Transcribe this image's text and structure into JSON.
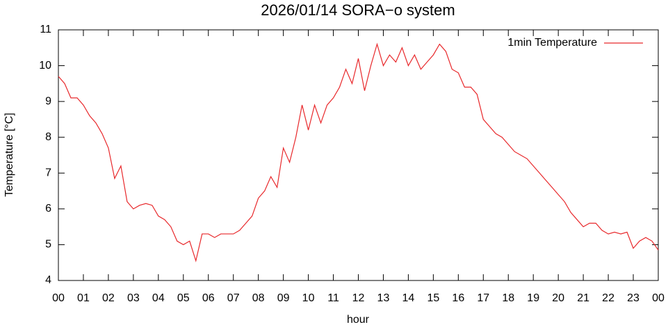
{
  "chart_data": {
    "type": "line",
    "title": "2026/01/14 SORA−o system",
    "x_label": "hour",
    "y_label": "Temperature [°C]",
    "x": [
      0,
      0.25,
      0.5,
      0.75,
      1,
      1.25,
      1.5,
      1.75,
      2,
      2.25,
      2.5,
      2.75,
      3,
      3.25,
      3.5,
      3.75,
      4,
      4.25,
      4.5,
      4.75,
      5,
      5.25,
      5.5,
      5.75,
      6,
      6.25,
      6.5,
      6.75,
      7,
      7.25,
      7.5,
      7.75,
      8,
      8.25,
      8.5,
      8.75,
      9,
      9.25,
      9.5,
      9.75,
      10,
      10.25,
      10.5,
      10.75,
      11,
      11.25,
      11.5,
      11.75,
      12,
      12.25,
      12.5,
      12.75,
      13,
      13.25,
      13.5,
      13.75,
      14,
      14.25,
      14.5,
      14.75,
      15,
      15.25,
      15.5,
      15.75,
      16,
      16.25,
      16.5,
      16.75,
      17,
      17.25,
      17.5,
      17.75,
      18,
      18.25,
      18.5,
      18.75,
      19,
      19.25,
      19.5,
      19.75,
      20,
      20.25,
      20.5,
      20.75,
      21,
      21.25,
      21.5,
      21.75,
      22,
      22.25,
      22.5,
      22.75,
      23,
      23.25,
      23.5,
      23.75,
      24
    ],
    "series": [
      {
        "name": "1min Temperature",
        "color": "#e8282b",
        "values": [
          9.7,
          9.5,
          9.1,
          9.1,
          8.9,
          8.6,
          8.4,
          8.1,
          7.7,
          6.85,
          7.2,
          6.2,
          6.0,
          6.1,
          6.15,
          6.1,
          5.8,
          5.7,
          5.5,
          5.1,
          5.0,
          5.1,
          4.55,
          5.3,
          5.3,
          5.2,
          5.3,
          5.3,
          5.3,
          5.4,
          5.6,
          5.8,
          6.3,
          6.5,
          6.9,
          6.6,
          7.7,
          7.3,
          8.0,
          8.9,
          8.2,
          8.9,
          8.4,
          8.9,
          9.1,
          9.4,
          9.9,
          9.5,
          10.2,
          9.3,
          10.0,
          10.6,
          10.0,
          10.3,
          10.1,
          10.5,
          10.0,
          10.3,
          9.9,
          10.1,
          10.3,
          10.6,
          10.4,
          9.9,
          9.8,
          9.4,
          9.4,
          9.2,
          8.5,
          8.3,
          8.1,
          8.0,
          7.8,
          7.6,
          7.5,
          7.4,
          7.2,
          7.0,
          6.8,
          6.6,
          6.4,
          6.2,
          5.9,
          5.7,
          5.5,
          5.6,
          5.6,
          5.4,
          5.3,
          5.35,
          5.3,
          5.35,
          4.9,
          5.1,
          5.2,
          5.1,
          4.85
        ]
      }
    ],
    "xlim": [
      0,
      24
    ],
    "xticks": [
      {
        "value": 0,
        "label": "00"
      },
      {
        "value": 1,
        "label": "01"
      },
      {
        "value": 2,
        "label": "02"
      },
      {
        "value": 3,
        "label": "03"
      },
      {
        "value": 4,
        "label": "04"
      },
      {
        "value": 5,
        "label": "05"
      },
      {
        "value": 6,
        "label": "06"
      },
      {
        "value": 7,
        "label": "07"
      },
      {
        "value": 8,
        "label": "08"
      },
      {
        "value": 9,
        "label": "09"
      },
      {
        "value": 10,
        "label": "10"
      },
      {
        "value": 11,
        "label": "11"
      },
      {
        "value": 12,
        "label": "12"
      },
      {
        "value": 13,
        "label": "13"
      },
      {
        "value": 14,
        "label": "14"
      },
      {
        "value": 15,
        "label": "15"
      },
      {
        "value": 16,
        "label": "16"
      },
      {
        "value": 17,
        "label": "17"
      },
      {
        "value": 18,
        "label": "18"
      },
      {
        "value": 19,
        "label": "19"
      },
      {
        "value": 20,
        "label": "20"
      },
      {
        "value": 21,
        "label": "21"
      },
      {
        "value": 22,
        "label": "22"
      },
      {
        "value": 23,
        "label": "23"
      },
      {
        "value": 24,
        "label": "00"
      }
    ],
    "ylim": [
      4,
      11
    ],
    "yticks": [
      4,
      5,
      6,
      7,
      8,
      9,
      10,
      11
    ],
    "legend": "top-right"
  }
}
